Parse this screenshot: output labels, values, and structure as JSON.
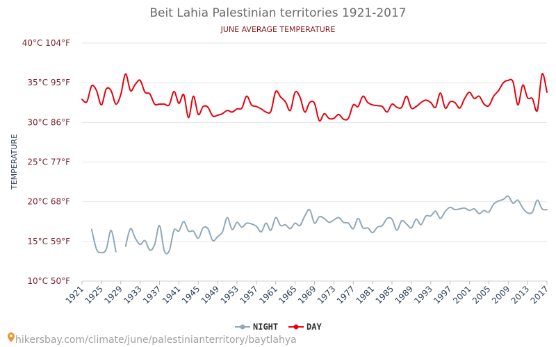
{
  "chart_data": {
    "type": "line",
    "title": "Beit Lahia Palestinian territories 1921-2017",
    "subtitle": "JUNE AVERAGE TEMPERATURE",
    "ylabel": "TEMPERATURE",
    "xlabel": "",
    "ylim": [
      10,
      40
    ],
    "xlim": [
      1921,
      2017
    ],
    "y_ticks": [
      {
        "value": 10,
        "label": "10°C 50°F"
      },
      {
        "value": 15,
        "label": "15°C 59°F"
      },
      {
        "value": 20,
        "label": "20°C 68°F"
      },
      {
        "value": 25,
        "label": "25°C 77°F"
      },
      {
        "value": 30,
        "label": "30°C 86°F"
      },
      {
        "value": 35,
        "label": "35°C 95°F"
      },
      {
        "value": 40,
        "label": "40°C 104°F"
      }
    ],
    "x_ticks": [
      "1921",
      "1925",
      "1929",
      "1933",
      "1937",
      "1941",
      "1945",
      "1949",
      "1953",
      "1957",
      "1961",
      "1965",
      "1969",
      "1973",
      "1977",
      "1981",
      "1985",
      "1989",
      "1993",
      "1997",
      "2001",
      "2005",
      "2009",
      "2013",
      "2017"
    ],
    "grid": true,
    "legend_position": "bottom-center",
    "series": [
      {
        "name": "NIGHT",
        "color": "#8fa8b8",
        "x": [
          1923,
          1924,
          1925,
          1926,
          1927,
          1928,
          1930,
          1931,
          1932,
          1933,
          1934,
          1935,
          1936,
          1937,
          1938,
          1939,
          1940,
          1941,
          1942,
          1943,
          1944,
          1945,
          1946,
          1947,
          1948,
          1949,
          1950,
          1951,
          1952,
          1953,
          1954,
          1955,
          1956,
          1957,
          1958,
          1959,
          1960,
          1961,
          1962,
          1963,
          1964,
          1965,
          1966,
          1967,
          1968,
          1969,
          1970,
          1971,
          1972,
          1973,
          1974,
          1975,
          1976,
          1977,
          1978,
          1979,
          1980,
          1981,
          1982,
          1983,
          1984,
          1985,
          1986,
          1987,
          1988,
          1989,
          1990,
          1991,
          1992,
          1993,
          1994,
          1995,
          1996,
          1997,
          1998,
          1999,
          2000,
          2001,
          2002,
          2003,
          2004,
          2005,
          2006,
          2007,
          2008,
          2009,
          2010,
          2011,
          2012,
          2013,
          2014,
          2015,
          2016,
          2017
        ],
        "values": [
          16.5,
          14.0,
          13.6,
          14.0,
          16.4,
          13.7,
          14.4,
          16.6,
          15.4,
          14.6,
          15.1,
          13.9,
          14.6,
          17.0,
          13.8,
          13.8,
          16.4,
          16.3,
          17.5,
          16.3,
          16.3,
          15.4,
          16.7,
          16.6,
          15.1,
          15.6,
          16.2,
          18.0,
          16.5,
          17.4,
          16.8,
          17.3,
          17.2,
          16.9,
          16.2,
          17.3,
          16.4,
          18.0,
          17.0,
          17.1,
          16.6,
          17.3,
          17.0,
          18.2,
          19.0,
          17.3,
          18.1,
          17.9,
          17.4,
          17.7,
          18.0,
          17.4,
          17.3,
          16.6,
          17.9,
          16.7,
          16.7,
          16.1,
          16.8,
          17.0,
          17.9,
          17.8,
          16.4,
          17.6,
          17.2,
          16.7,
          17.8,
          17.1,
          18.2,
          18.2,
          18.8,
          17.9,
          18.8,
          19.3,
          19.0,
          19.1,
          19.2,
          18.9,
          19.1,
          18.5,
          18.9,
          18.7,
          19.7,
          20.1,
          20.3,
          20.7,
          19.8,
          20.2,
          19.2,
          18.6,
          18.7,
          20.2,
          19.1,
          19.0
        ]
      },
      {
        "name": "DAY",
        "color": "#e8000b",
        "x": [
          1921,
          1922,
          1923,
          1924,
          1925,
          1926,
          1927,
          1928,
          1929,
          1930,
          1931,
          1932,
          1933,
          1934,
          1935,
          1936,
          1937,
          1938,
          1939,
          1940,
          1941,
          1942,
          1943,
          1944,
          1945,
          1946,
          1947,
          1948,
          1949,
          1950,
          1951,
          1952,
          1953,
          1954,
          1955,
          1956,
          1957,
          1958,
          1959,
          1960,
          1961,
          1962,
          1963,
          1964,
          1965,
          1966,
          1967,
          1968,
          1969,
          1970,
          1971,
          1972,
          1973,
          1974,
          1975,
          1976,
          1977,
          1978,
          1979,
          1980,
          1981,
          1982,
          1983,
          1984,
          1985,
          1986,
          1987,
          1988,
          1989,
          1990,
          1991,
          1992,
          1993,
          1994,
          1995,
          1996,
          1997,
          1998,
          1999,
          2000,
          2001,
          2002,
          2003,
          2004,
          2005,
          2006,
          2007,
          2008,
          2009,
          2010,
          2011,
          2012,
          2013,
          2014,
          2015,
          2016,
          2017
        ],
        "values": [
          32.9,
          32.6,
          34.6,
          34.0,
          32.2,
          34.2,
          34.0,
          32.3,
          33.5,
          36.1,
          34.0,
          34.8,
          35.3,
          33.8,
          33.6,
          32.3,
          32.3,
          32.3,
          32.2,
          33.9,
          32.4,
          33.5,
          30.6,
          33.3,
          31.0,
          32.0,
          31.9,
          30.8,
          30.9,
          31.1,
          31.5,
          31.3,
          31.7,
          31.8,
          33.3,
          32.2,
          32.0,
          31.7,
          31.3,
          31.4,
          33.9,
          33.2,
          32.6,
          31.5,
          33.8,
          33.2,
          31.3,
          32.5,
          32.4,
          30.2,
          31.1,
          30.5,
          30.5,
          31.0,
          30.4,
          30.5,
          32.2,
          32.0,
          33.3,
          32.5,
          32.2,
          32.1,
          32.0,
          31.3,
          32.3,
          31.9,
          31.9,
          33.3,
          31.8,
          32.0,
          32.5,
          32.8,
          32.5,
          31.9,
          33.7,
          31.8,
          32.6,
          32.5,
          31.8,
          33.0,
          33.8,
          33.0,
          33.3,
          32.3,
          32.1,
          33.3,
          34.0,
          35.0,
          35.3,
          35.1,
          32.2,
          34.7,
          33.1,
          33.0,
          31.5,
          36.1,
          33.8
        ]
      }
    ]
  },
  "source": {
    "text": "hikersbay.com/climate/june/palestinianterritory/baytlahya"
  }
}
